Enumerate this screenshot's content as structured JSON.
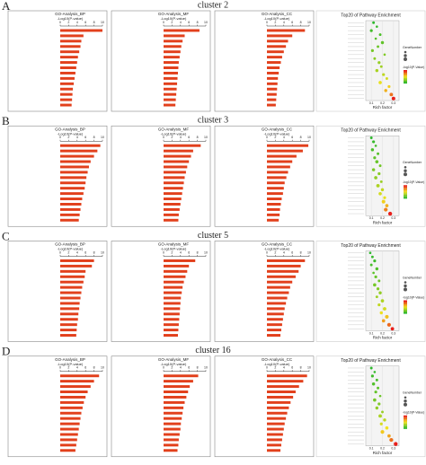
{
  "figure": {
    "panels": [
      {
        "letter": "A",
        "title": "cluster 2"
      },
      {
        "letter": "B",
        "title": "cluster 3"
      },
      {
        "letter": "C",
        "title": "cluster 5"
      },
      {
        "letter": "D",
        "title": "cluster 16"
      }
    ]
  },
  "chart_data": [
    {
      "type": "bar",
      "title": "GO-Analysis_BP",
      "xlabel": "-Log10(P-value)",
      "values": [
        10,
        5.5,
        5,
        4.8,
        4.5,
        4.2,
        4,
        3.8,
        3.6,
        3.4,
        3.2,
        3,
        2.9,
        2.8,
        2.7
      ],
      "xlim": [
        0,
        10
      ],
      "xticks": [
        0,
        2,
        4,
        6,
        8,
        10
      ],
      "color": "#e2401c"
    },
    {
      "type": "bar",
      "title": "GO-Analysis_MF",
      "xlabel": "-Log10(P-value)",
      "values": [
        8.5,
        5,
        4.5,
        4.2,
        4,
        3.8,
        3.6,
        3.5,
        3.4,
        3.3,
        3.2,
        3.1,
        3,
        2.9,
        2.8
      ],
      "xlim": [
        0,
        10
      ],
      "xticks": [
        0,
        2,
        4,
        6,
        8,
        10
      ],
      "color": "#e2401c"
    },
    {
      "type": "bar",
      "title": "GO-Analysis_CC",
      "xlabel": "-Log10(P-value)",
      "values": [
        9,
        6,
        5,
        4.5,
        4,
        3.6,
        3.3,
        3,
        2.8,
        2.6,
        2.5,
        2.4,
        2.3,
        2.2,
        2.1
      ],
      "xlim": [
        0,
        10
      ],
      "xticks": [
        0,
        2,
        4,
        6,
        8,
        10
      ],
      "color": "#e2401c"
    },
    {
      "type": "scatter",
      "title": "Top20 of Pathway Enrichment",
      "xlabel": "Rich factor",
      "size_title": "GeneNumber",
      "color_title": "-log10(P-Value)",
      "values": [
        0.12,
        0.15,
        0.1,
        0.18,
        0.14,
        0.2,
        0.16,
        0.11,
        0.22,
        0.13,
        0.17,
        0.19,
        0.15,
        0.21,
        0.24,
        0.18,
        0.26,
        0.23,
        0.28,
        0.3
      ],
      "sizes": [
        3,
        2,
        4,
        3,
        2,
        5,
        3,
        4,
        2,
        3,
        4,
        3,
        5,
        4,
        3,
        6,
        4,
        5,
        7,
        8
      ],
      "pvalues": [
        1.2,
        1.3,
        1.4,
        1.5,
        1.6,
        1.7,
        1.8,
        1.9,
        2,
        2.1,
        2.2,
        2.3,
        2.4,
        2.6,
        2.8,
        3,
        3.3,
        3.6,
        4.2,
        5
      ],
      "xlim": [
        0.05,
        0.35
      ],
      "xticks": [
        0.1,
        0.2,
        0.3
      ],
      "colorscale": [
        "#2db82d",
        "#f2e21c",
        "#e8201c"
      ]
    },
    {
      "type": "bar",
      "title": "GO-Analysis_BP",
      "xlabel": "-Log10(P-value)",
      "values": [
        9.5,
        8.8,
        8,
        7.2,
        6.8,
        6.5,
        6.2,
        6,
        5.8,
        5.5,
        5.2,
        5,
        4.8,
        4.6,
        4.4
      ],
      "xlim": [
        0,
        10
      ],
      "xticks": [
        0,
        2,
        4,
        6,
        8,
        10
      ],
      "color": "#e2401c"
    },
    {
      "type": "bar",
      "title": "GO-Analysis_MF",
      "xlabel": "-Log10(P-value)",
      "values": [
        8.8,
        7,
        6.5,
        6,
        5.6,
        5.3,
        5,
        4.8,
        4.6,
        4.4,
        4.2,
        4,
        3.8,
        3.6,
        3.5
      ],
      "xlim": [
        0,
        10
      ],
      "xticks": [
        0,
        2,
        4,
        6,
        8,
        10
      ],
      "color": "#e2401c"
    },
    {
      "type": "bar",
      "title": "GO-Analysis_CC",
      "xlabel": "-Log10(P-value)",
      "values": [
        9.8,
        8.5,
        7,
        6,
        5.5,
        5,
        4.6,
        4.2,
        4,
        3.8,
        3.5,
        3.3,
        3.1,
        3,
        2.8
      ],
      "xlim": [
        0,
        10
      ],
      "xticks": [
        0,
        2,
        4,
        6,
        8,
        10
      ],
      "color": "#e2401c"
    },
    {
      "type": "scatter",
      "title": "Top20 of Pathway Enrichment",
      "xlabel": "Rich factor",
      "size_title": "GeneNumber",
      "color_title": "-log10(P-Value)",
      "values": [
        0.1,
        0.12,
        0.14,
        0.11,
        0.16,
        0.13,
        0.15,
        0.18,
        0.12,
        0.17,
        0.14,
        0.19,
        0.16,
        0.2,
        0.18,
        0.22,
        0.21,
        0.24,
        0.23,
        0.27
      ],
      "sizes": [
        3,
        4,
        2,
        5,
        3,
        4,
        6,
        3,
        5,
        4,
        6,
        3,
        7,
        5,
        6,
        4,
        8,
        6,
        9,
        10
      ],
      "pvalues": [
        1.5,
        1.6,
        1.7,
        1.8,
        1.9,
        2,
        2.1,
        2.2,
        2.3,
        2.4,
        2.5,
        2.6,
        2.8,
        3,
        3.2,
        3.4,
        3.7,
        4,
        4.5,
        5.5
      ],
      "xlim": [
        0.05,
        0.35
      ],
      "xticks": [
        0.1,
        0.2,
        0.3
      ],
      "colorscale": [
        "#2db82d",
        "#f2e21c",
        "#e8201c"
      ]
    },
    {
      "type": "bar",
      "title": "GO-Analysis_BP",
      "xlabel": "-Log10(P-value)",
      "values": [
        8,
        7.5,
        6,
        5.8,
        5.5,
        5.2,
        5,
        4.8,
        4.6,
        4.5,
        4.3,
        4.2,
        4,
        3.9,
        3.8
      ],
      "xlim": [
        0,
        10
      ],
      "xticks": [
        0,
        2,
        4,
        6,
        8,
        10
      ],
      "color": "#e2401c"
    },
    {
      "type": "bar",
      "title": "GO-Analysis_MF",
      "xlabel": "-Log10(P-value)",
      "values": [
        7.5,
        6,
        5.6,
        5.2,
        4.8,
        4.5,
        4.3,
        4.1,
        4,
        3.9,
        3.8,
        3.7,
        3.6,
        3.5,
        3.4
      ],
      "xlim": [
        0,
        10
      ],
      "xticks": [
        0,
        2,
        4,
        6,
        8,
        10
      ],
      "color": "#e2401c"
    },
    {
      "type": "bar",
      "title": "GO-Analysis_CC",
      "xlabel": "-Log10(P-value)",
      "values": [
        9,
        8,
        7.5,
        6.8,
        6,
        5.5,
        5.2,
        4.8,
        4.5,
        4.2,
        4,
        3.8,
        3.6,
        3.4,
        3.2
      ],
      "xlim": [
        0,
        10
      ],
      "xticks": [
        0,
        2,
        4,
        6,
        8,
        10
      ],
      "color": "#e2401c"
    },
    {
      "type": "scatter",
      "title": "Top20 of Pathway Enrichment",
      "xlabel": "Rich factor",
      "size_title": "GeneNumber",
      "color_title": "-log10(P-Value)",
      "values": [
        0.09,
        0.11,
        0.13,
        0.1,
        0.15,
        0.12,
        0.14,
        0.17,
        0.13,
        0.16,
        0.18,
        0.15,
        0.2,
        0.17,
        0.22,
        0.19,
        0.24,
        0.21,
        0.26,
        0.29
      ],
      "sizes": [
        2,
        3,
        4,
        3,
        5,
        2,
        4,
        3,
        6,
        4,
        5,
        3,
        6,
        4,
        7,
        5,
        8,
        6,
        9,
        7
      ],
      "pvalues": [
        1.3,
        1.4,
        1.5,
        1.6,
        1.7,
        1.8,
        1.9,
        2,
        2.1,
        2.2,
        2.4,
        2.5,
        2.7,
        2.9,
        3.1,
        3.4,
        3.8,
        4.2,
        4.8,
        5.6
      ],
      "xlim": [
        0.05,
        0.35
      ],
      "xticks": [
        0.1,
        0.2,
        0.3
      ],
      "colorscale": [
        "#2db82d",
        "#f2e21c",
        "#e8201c"
      ]
    },
    {
      "type": "bar",
      "title": "GO-Analysis_BP",
      "xlabel": "-Log10(P-value)",
      "values": [
        9.2,
        8,
        7.2,
        6.5,
        6,
        5.6,
        5.3,
        5,
        4.8,
        4.6,
        4.4,
        4.2,
        4,
        3.8,
        3.6
      ],
      "xlim": [
        0,
        10
      ],
      "xticks": [
        0,
        2,
        4,
        6,
        8,
        10
      ],
      "color": "#e2401c"
    },
    {
      "type": "bar",
      "title": "GO-Analysis_MF",
      "xlabel": "-Log10(P-value)",
      "values": [
        8.2,
        7,
        6.2,
        5.8,
        5.4,
        5,
        4.7,
        4.5,
        4.3,
        4.1,
        4,
        3.8,
        3.6,
        3.5,
        3.3
      ],
      "xlim": [
        0,
        10
      ],
      "xticks": [
        0,
        2,
        4,
        6,
        8,
        10
      ],
      "color": "#e2401c"
    },
    {
      "type": "bar",
      "title": "GO-Analysis_CC",
      "xlabel": "-Log10(P-value)",
      "values": [
        9.5,
        8.6,
        7.6,
        6.8,
        6.2,
        5.6,
        5.2,
        4.8,
        4.5,
        4.2,
        4,
        3.8,
        3.6,
        3.4,
        3.2
      ],
      "xlim": [
        0,
        10
      ],
      "xticks": [
        0,
        2,
        4,
        6,
        8,
        10
      ],
      "color": "#e2401c"
    },
    {
      "type": "scatter",
      "title": "Top20 of Pathway Enrichment",
      "xlabel": "Rich factor",
      "size_title": "GeneNumber",
      "color_title": "-log10(P-Value)",
      "values": [
        0.1,
        0.13,
        0.11,
        0.15,
        0.12,
        0.16,
        0.14,
        0.18,
        0.13,
        0.17,
        0.15,
        0.2,
        0.18,
        0.22,
        0.19,
        0.24,
        0.2,
        0.26,
        0.28,
        0.32
      ],
      "sizes": [
        3,
        2,
        4,
        3,
        5,
        3,
        4,
        2,
        6,
        4,
        5,
        3,
        7,
        5,
        4,
        6,
        8,
        6,
        9,
        10
      ],
      "pvalues": [
        1.4,
        1.5,
        1.6,
        1.7,
        1.8,
        1.9,
        2,
        2.1,
        2.2,
        2.3,
        2.5,
        2.6,
        2.8,
        3,
        3.3,
        3.6,
        3.9,
        4.3,
        4.9,
        5.8
      ],
      "xlim": [
        0.05,
        0.35
      ],
      "xticks": [
        0.1,
        0.2,
        0.3
      ],
      "colorscale": [
        "#2db82d",
        "#f2e21c",
        "#e8201c"
      ]
    }
  ]
}
